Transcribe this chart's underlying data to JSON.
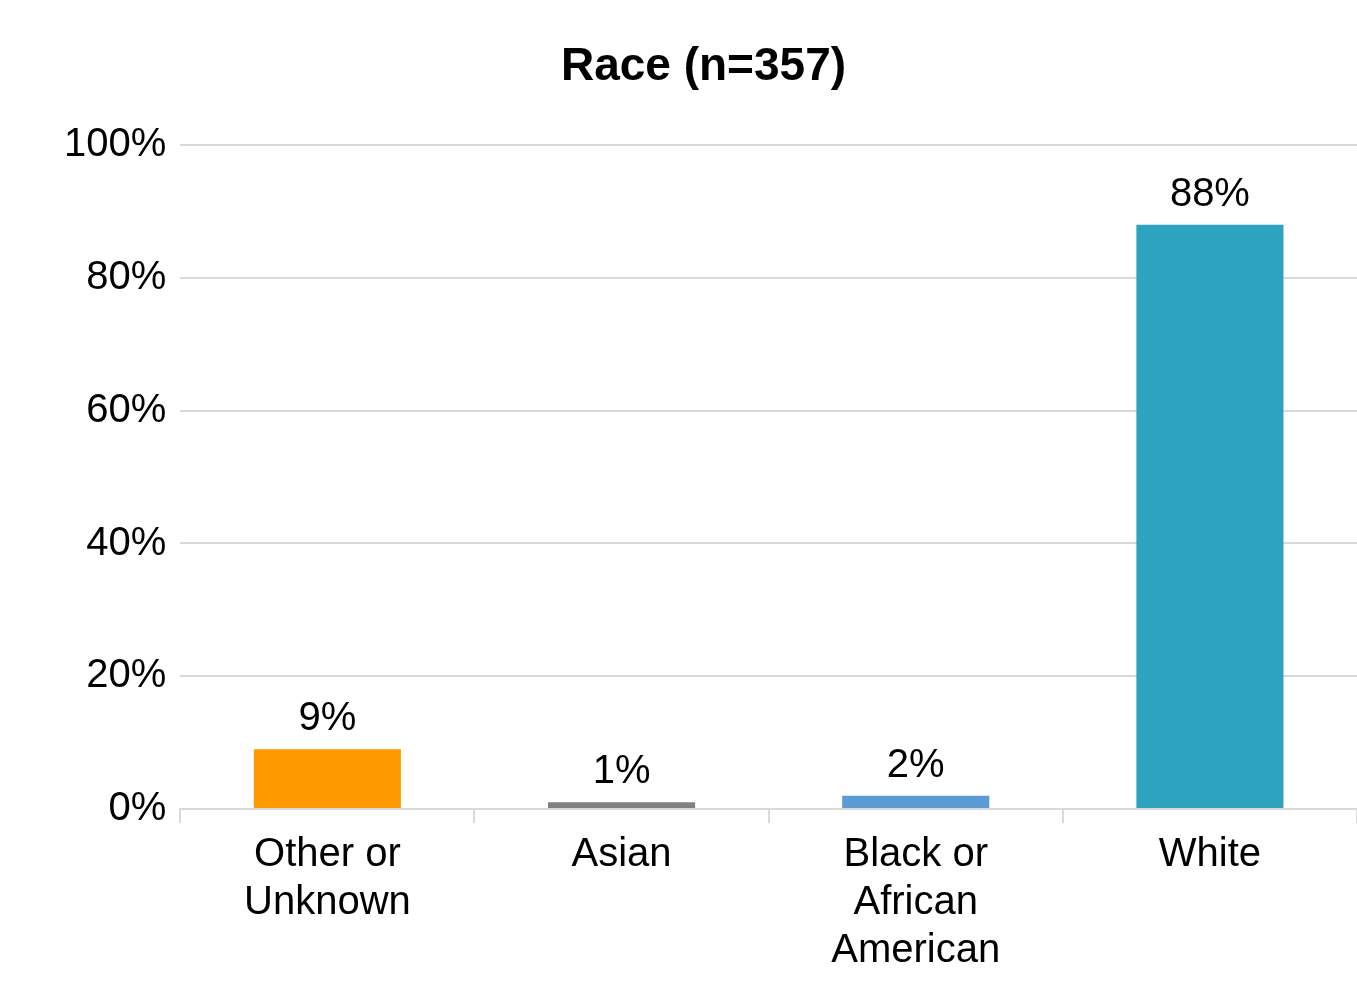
{
  "chart_data": {
    "type": "bar",
    "title": "Race (n=357)",
    "categories": [
      "Other or Unknown",
      "Asian",
      "Black or African American",
      "White"
    ],
    "values": [
      9,
      1,
      2,
      88
    ],
    "colors": [
      "#ff9900",
      "#808080",
      "#5b9bd5",
      "#2ea3c0"
    ],
    "value_labels": [
      "9%",
      "1%",
      "2%",
      "88%"
    ],
    "ylim": [
      0,
      100
    ],
    "yticks": [
      {
        "value": 0,
        "label": "0%"
      },
      {
        "value": 20,
        "label": "20%"
      },
      {
        "value": 40,
        "label": "40%"
      },
      {
        "value": 60,
        "label": "60%"
      },
      {
        "value": 80,
        "label": "80%"
      },
      {
        "value": 100,
        "label": "100%"
      }
    ],
    "grid": "y",
    "legend": false
  }
}
